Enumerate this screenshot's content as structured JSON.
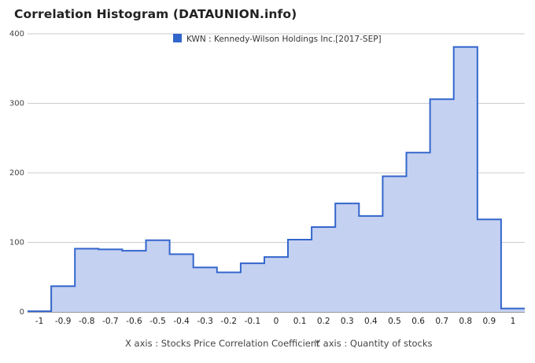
{
  "chart_data": {
    "type": "area",
    "title": "Correlation Histogram (DATAUNION.info)",
    "caption_x": "X axis : Stocks Price Correlation Coefficient",
    "caption_y": "Y axis : Quantity of stocks",
    "legend": [
      {
        "label": "KWN : Kennedy-Wilson Holdings Inc.[2017-SEP]",
        "color": "#3366cc"
      }
    ],
    "fill_color": "#c5d1f1",
    "line_color": "#3366cc",
    "legend_position": "top-center",
    "grid": true,
    "xlim": [
      -1.05,
      1.05
    ],
    "ylim": [
      0,
      400
    ],
    "y_ticks": [
      0,
      100,
      200,
      300,
      400
    ],
    "x_ticks": [
      "-1",
      "-0.9",
      "-0.8",
      "-0.7",
      "-0.6",
      "-0.5",
      "-0.4",
      "-0.3",
      "-0.2",
      "-0.1",
      "0",
      "0.1",
      "0.2",
      "0.3",
      "0.4",
      "0.5",
      "0.6",
      "0.7",
      "0.8",
      "0.9",
      "1"
    ],
    "x": [
      -1.0,
      -0.9,
      -0.8,
      -0.7,
      -0.6,
      -0.5,
      -0.4,
      -0.3,
      -0.2,
      -0.1,
      0.0,
      0.1,
      0.2,
      0.3,
      0.4,
      0.5,
      0.6,
      0.7,
      0.8,
      0.9,
      1.0
    ],
    "values": [
      1,
      37,
      91,
      90,
      88,
      103,
      83,
      64,
      57,
      70,
      79,
      104,
      122,
      156,
      138,
      195,
      229,
      306,
      381,
      133,
      5
    ]
  }
}
